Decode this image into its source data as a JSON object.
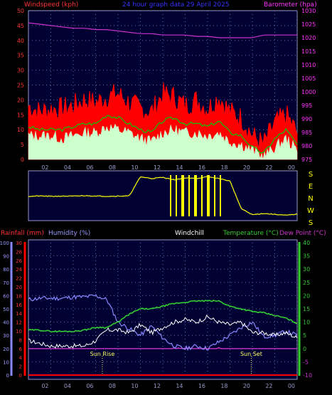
{
  "header": {
    "windspeed": "Windspeed (kph)",
    "title": "24 hour graph data",
    "date": "29 April 2025",
    "barometer": "Barometer (hpa)"
  },
  "footer_header": {
    "rainfall": "Rainfall (mm)",
    "humidity": "Humidity (%)",
    "windchill": "Windchill",
    "temperature": "Temperature (°C)",
    "dewpoint": "Dew Point (°C)"
  },
  "x_hours": [
    "02",
    "04",
    "06",
    "08",
    "10",
    "12",
    "14",
    "16",
    "18",
    "20",
    "22",
    "00"
  ],
  "direction_labels": [
    "S",
    "E",
    "N",
    "W",
    "S"
  ],
  "sun": {
    "rise": "Sun Rise",
    "set": "Sun Set"
  },
  "colors": {
    "panel": "#000033",
    "grid": "#6666aa",
    "axis": "#9999cc",
    "wind_gust": "#ff0000",
    "wind_avg_line": "#00cc00",
    "wind_speed": "#ccffcc",
    "barometer": "#cc33cc",
    "direction": "#ffff00",
    "temperature": "#33cc33",
    "dewpoint": "#cc33cc",
    "humidity": "#8888ff",
    "windchill": "#ffffff",
    "rainfall": "#ff0000",
    "left_axis_text": "#ff3333",
    "pink_axis_text": "#ff33ff",
    "humidity_axis_text": "#9999ff",
    "temp_axis_text": "#33cc33",
    "dew_axis_text": "#cc33cc"
  },
  "chart_data": [
    {
      "type": "line",
      "name": "wind-and-pressure",
      "x_hours": [
        "02",
        "04",
        "06",
        "08",
        "10",
        "12",
        "14",
        "16",
        "18",
        "20",
        "22",
        "00"
      ],
      "wind_axis": {
        "ylabel": "Windspeed (kph)",
        "ylim": [
          0,
          50
        ],
        "ticks": [
          0,
          5,
          10,
          15,
          20,
          25,
          30,
          35,
          40,
          45,
          50
        ]
      },
      "pressure_axis": {
        "ylabel": "Barometer (hpa)",
        "ylim": [
          975,
          1030
        ],
        "ticks": [
          975,
          980,
          985,
          990,
          995,
          1000,
          1005,
          1010,
          1015,
          1020,
          1025,
          1030
        ]
      },
      "gust_envelope_kph": [
        18,
        16,
        17,
        17,
        18,
        20,
        19,
        21,
        22,
        19,
        17,
        16,
        22,
        21,
        18,
        20,
        17,
        21,
        16,
        14,
        8,
        5,
        12,
        15,
        9
      ],
      "average_speed_kph": [
        11,
        10,
        10,
        10,
        11,
        12,
        12,
        15,
        14,
        12,
        10,
        9,
        13,
        14,
        12,
        12,
        11,
        13,
        9,
        8,
        4,
        2,
        7,
        10,
        5
      ],
      "wind_speed_kph": [
        8,
        8,
        8,
        7,
        8,
        9,
        9,
        11,
        10,
        9,
        7,
        6,
        9,
        10,
        9,
        9,
        8,
        9,
        6,
        5,
        3,
        1,
        4,
        7,
        3
      ],
      "barometer_hpa": [
        1025.5,
        1025,
        1024.5,
        1024,
        1023.5,
        1023.5,
        1023,
        1023,
        1022.5,
        1022,
        1021.5,
        1021.5,
        1021,
        1021,
        1021,
        1020.5,
        1020.5,
        1020,
        1020,
        1020,
        1020,
        1021,
        1021,
        1021,
        1021
      ]
    },
    {
      "type": "line",
      "name": "wind-direction",
      "x_hours": [
        "02",
        "04",
        "06",
        "08",
        "10",
        "12",
        "14",
        "16",
        "18",
        "20",
        "22",
        "00"
      ],
      "y_labels": [
        "S",
        "E",
        "N",
        "W",
        "S"
      ],
      "direction_deg": [
        175,
        178,
        175,
        177,
        176,
        180,
        178,
        175,
        177,
        178,
        335,
        320,
        330,
        310,
        325,
        320,
        335,
        320,
        300,
        75,
        25,
        35,
        28,
        20,
        30
      ]
    },
    {
      "type": "line",
      "name": "temperature-humidity-rain",
      "x_hours": [
        "02",
        "04",
        "06",
        "08",
        "10",
        "12",
        "14",
        "16",
        "18",
        "20",
        "22",
        "00"
      ],
      "rain_axis": {
        "ylabel": "Rainfall (mm)",
        "ylim": [
          0,
          30
        ],
        "ticks": [
          0,
          2,
          4,
          6,
          8,
          10,
          12,
          14,
          16,
          18,
          20,
          22,
          24,
          26,
          28,
          30
        ]
      },
      "humidity_axis": {
        "ylabel": "Humidity (%)",
        "ylim": [
          0,
          100
        ],
        "ticks": [
          0,
          10,
          20,
          30,
          40,
          50,
          60,
          70,
          80,
          90,
          100
        ]
      },
      "temp_axis": {
        "ylabel": "Temperature (°C)",
        "ylim": [
          -10,
          40
        ],
        "ticks": [
          -10,
          -5,
          0,
          5,
          10,
          15,
          20,
          25,
          30,
          35,
          40
        ]
      },
      "temperature_c": [
        7,
        7,
        6.5,
        6.5,
        6.5,
        7,
        8,
        8,
        10,
        13,
        15,
        15,
        16,
        17,
        17.5,
        18,
        18,
        18,
        16,
        15,
        14,
        13.5,
        12.5,
        11.5,
        9.5
      ],
      "humidity_pct": [
        57,
        58,
        58,
        58,
        59,
        59,
        60,
        57,
        40,
        35,
        30,
        37,
        28,
        22,
        20,
        22,
        20,
        25,
        30,
        36,
        40,
        29,
        30,
        33,
        30
      ],
      "windchill_c": [
        3,
        2,
        1,
        1,
        1,
        1,
        3,
        7,
        7,
        6,
        9,
        6,
        8,
        10,
        11,
        10,
        12,
        10,
        9,
        10,
        6,
        6,
        5,
        6,
        4
      ],
      "dewpoint_c": [
        -1,
        -1,
        -2,
        -2,
        -2,
        -2,
        -3,
        -4,
        -7,
        -9,
        -4,
        -2,
        -1,
        0,
        0,
        -0.5,
        -1,
        0,
        -1,
        -2,
        -6,
        -7,
        -6,
        -5,
        -5
      ],
      "rainfall_mm": [
        0,
        0,
        0,
        0,
        0,
        0,
        0,
        0,
        0,
        0,
        0,
        0,
        0,
        0,
        0,
        0,
        0,
        0,
        0,
        0,
        0,
        0,
        0,
        0,
        0
      ],
      "annotations": [
        {
          "text": "Sun Rise",
          "hour": "06"
        },
        {
          "text": "Sun Set",
          "hour": "20"
        }
      ]
    }
  ]
}
